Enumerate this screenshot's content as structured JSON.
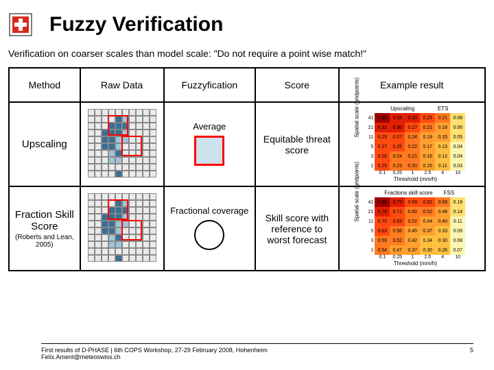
{
  "header": {
    "title": "Fuzzy Verification",
    "subtitle": "Verification on coarser scales than model scale: \"Do not require a point wise match!\""
  },
  "columns": {
    "method": "Method",
    "raw": "Raw Data",
    "fuzzy": "Fuzzyfication",
    "score": "Score",
    "example": "Example result"
  },
  "rows": [
    {
      "method_label": "Upscaling",
      "method_sub": "",
      "fuzzy_label": "Average",
      "fuzzy_glyph": "box",
      "score": "Equitable threat score",
      "grid": [
        [
          0,
          0,
          0,
          0,
          0,
          0,
          0,
          0,
          0,
          0
        ],
        [
          0,
          0,
          0,
          0,
          2,
          1,
          0,
          0,
          0,
          0
        ],
        [
          0,
          0,
          0,
          2,
          2,
          2,
          0,
          0,
          0,
          0
        ],
        [
          0,
          0,
          2,
          2,
          2,
          1,
          0,
          0,
          0,
          0
        ],
        [
          0,
          0,
          2,
          2,
          1,
          1,
          0,
          0,
          0,
          0
        ],
        [
          0,
          0,
          2,
          2,
          1,
          0,
          0,
          0,
          0,
          0
        ],
        [
          0,
          0,
          0,
          1,
          2,
          0,
          0,
          0,
          0,
          0
        ],
        [
          0,
          0,
          0,
          1,
          1,
          0,
          0,
          0,
          0,
          0
        ],
        [
          0,
          0,
          0,
          0,
          0,
          0,
          0,
          0,
          0,
          0
        ],
        [
          0,
          0,
          0,
          0,
          2,
          0,
          0,
          0,
          0,
          0
        ]
      ],
      "red_boxes": [
        {
          "x": 3,
          "y": 1,
          "w": 3,
          "h": 3
        },
        {
          "x": 5,
          "y": 4,
          "w": 3,
          "h": 3
        }
      ],
      "heatmap": {
        "title_left": "Upscaling",
        "title_right": "ETS",
        "ylabel": "Spatial scale (gridpoints)",
        "xlabel": "Threshold (mm/h)",
        "yticks": [
          "41",
          "21",
          "11",
          "5",
          "3",
          "1"
        ],
        "xticks": [
          "0.1",
          "0.25",
          "1",
          "2.5",
          "4",
          "10"
        ],
        "cells": [
          [
            0.35,
            0.34,
            0.3,
            0.25,
            0.21,
            0.08
          ],
          [
            0.31,
            0.3,
            0.27,
            0.21,
            0.18,
            0.06
          ],
          [
            0.29,
            0.27,
            0.24,
            0.19,
            0.15,
            0.05
          ],
          [
            0.27,
            0.25,
            0.22,
            0.17,
            0.13,
            0.04
          ],
          [
            0.26,
            0.24,
            0.21,
            0.16,
            0.12,
            0.04
          ],
          [
            0.25,
            0.23,
            0.2,
            0.15,
            0.11,
            0.03
          ]
        ]
      }
    },
    {
      "method_label": "Fraction Skill Score",
      "method_sub": "(Roberts and Lean, 2005)",
      "fuzzy_label": "Fractional coverage",
      "fuzzy_glyph": "circle",
      "score": "Skill score with reference to worst forecast",
      "grid": [
        [
          0,
          0,
          0,
          0,
          0,
          0,
          0,
          0,
          0,
          0
        ],
        [
          0,
          0,
          0,
          0,
          2,
          1,
          0,
          0,
          0,
          0
        ],
        [
          0,
          0,
          0,
          2,
          2,
          2,
          0,
          0,
          0,
          0
        ],
        [
          0,
          0,
          2,
          2,
          2,
          1,
          0,
          0,
          0,
          0
        ],
        [
          0,
          0,
          2,
          2,
          1,
          1,
          0,
          0,
          0,
          0
        ],
        [
          0,
          0,
          2,
          2,
          1,
          0,
          0,
          0,
          0,
          0
        ],
        [
          0,
          0,
          0,
          1,
          2,
          0,
          0,
          0,
          0,
          0
        ],
        [
          0,
          0,
          0,
          1,
          1,
          0,
          0,
          0,
          0,
          0
        ],
        [
          0,
          0,
          0,
          0,
          0,
          0,
          0,
          0,
          0,
          0
        ],
        [
          0,
          0,
          0,
          0,
          2,
          0,
          0,
          0,
          0,
          0
        ]
      ],
      "red_boxes": [
        {
          "x": 3,
          "y": 1,
          "w": 3,
          "h": 3
        },
        {
          "x": 5,
          "y": 4,
          "w": 3,
          "h": 3
        }
      ],
      "heatmap": {
        "title_left": "Fractions skill score",
        "title_right": "FSS",
        "ylabel": "Spatial scale (gridpoints)",
        "xlabel": "Threshold (mm/h)",
        "yticks": [
          "41",
          "21",
          "11",
          "5",
          "3",
          "1"
        ],
        "xticks": [
          "0.1",
          "0.25",
          "1",
          "2.5",
          "4",
          "10"
        ],
        "cells": [
          [
            0.85,
            0.79,
            0.69,
            0.62,
            0.59,
            0.18
          ],
          [
            0.78,
            0.71,
            0.6,
            0.52,
            0.48,
            0.14
          ],
          [
            0.7,
            0.63,
            0.52,
            0.44,
            0.4,
            0.11
          ],
          [
            0.63,
            0.56,
            0.45,
            0.37,
            0.33,
            0.09
          ],
          [
            0.59,
            0.52,
            0.42,
            0.34,
            0.3,
            0.08
          ],
          [
            0.54,
            0.47,
            0.37,
            0.3,
            0.26,
            0.07
          ]
        ]
      }
    }
  ],
  "palette": {
    "grid": {
      "0": "#eaeaea",
      "1": "#9fc4d6",
      "2": "#3a6e94"
    },
    "avg_fill": "#cde2ec",
    "heat_scale": [
      "#fff5b0",
      "#ffe070",
      "#ffc040",
      "#ffa030",
      "#ff7a20",
      "#ff4a10",
      "#e02000",
      "#a00000"
    ]
  },
  "footer": {
    "text": "First results of D-PHASE | 6th COPS Workshop, 27-29 February 2008, Hohenheim\nFelix.Ament@meteoswiss.ch",
    "page": "5"
  }
}
